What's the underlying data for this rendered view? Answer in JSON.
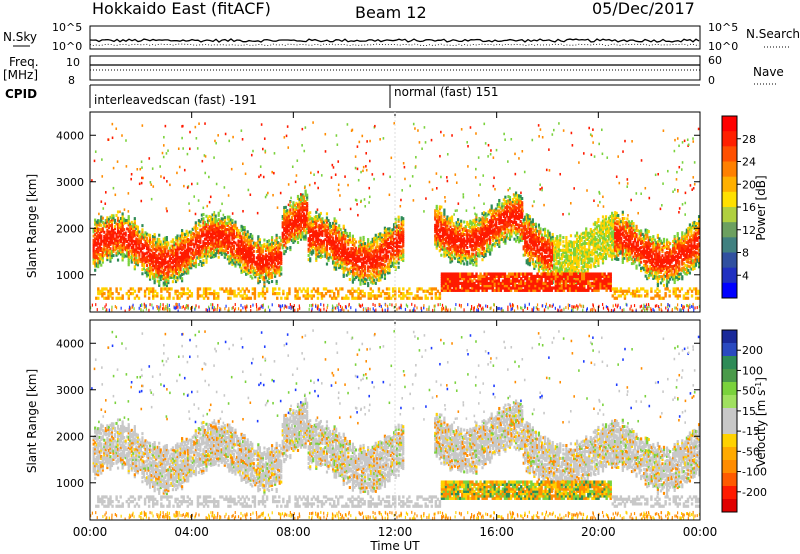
{
  "header": {
    "station": "Hokkaido East (fitACF)",
    "beam": "Beam 12",
    "date": "05/Dec/2017"
  },
  "top_panels": {
    "nsky_label": "N.Sky",
    "nsky_ticks": [
      "10^5",
      "10^0"
    ],
    "nsearch_label": "N.Search",
    "freq_label": "Freq.",
    "freq_unit": "[MHz]",
    "freq_ticks": [
      "10",
      "8"
    ],
    "nave_label": "Nave",
    "nave_ticks": [
      "60",
      "0"
    ],
    "cpid_label": "CPID",
    "cpid_segments": [
      "interleavedscan (fast) -191",
      "normal (fast) 151"
    ]
  },
  "colors": {
    "red": "#ff1a00",
    "orange": "#ff8c00",
    "yellow": "#ffd200",
    "green_light": "#7ad23c",
    "green_dark": "#2e8b57",
    "grey": "#c8c8c8",
    "blue": "#1e3cff",
    "navy": "#1a2a9a"
  },
  "chart_data": [
    {
      "type": "heatmap",
      "title": "",
      "xlabel": "Time UT",
      "ylabel": "Slant Range [km]",
      "x_ticks": [
        "00:00",
        "04:00",
        "08:00",
        "12:00",
        "16:00",
        "20:00",
        "00:00"
      ],
      "y_ticks": [
        "1000",
        "2000",
        "3000",
        "4000"
      ],
      "xlim": [
        0,
        24
      ],
      "ylim": [
        200,
        4500
      ],
      "colorbar": {
        "label": "Power [dB]",
        "ticks": [
          "28",
          "24",
          "20",
          "16",
          "12",
          "8",
          "4"
        ]
      }
    },
    {
      "type": "heatmap",
      "title": "",
      "xlabel": "Time UT",
      "ylabel": "Slant Range [km]",
      "x_ticks": [
        "00:00",
        "04:00",
        "08:00",
        "12:00",
        "16:00",
        "20:00",
        "00:00"
      ],
      "y_ticks": [
        "1000",
        "2000",
        "3000",
        "4000"
      ],
      "xlim": [
        0,
        24
      ],
      "ylim": [
        200,
        4500
      ],
      "colorbar": {
        "label": "Velocity [m s^-1]",
        "ticks": [
          "200",
          "100",
          "50",
          "15",
          "-15",
          "-50",
          "-100",
          "-200"
        ]
      }
    }
  ]
}
